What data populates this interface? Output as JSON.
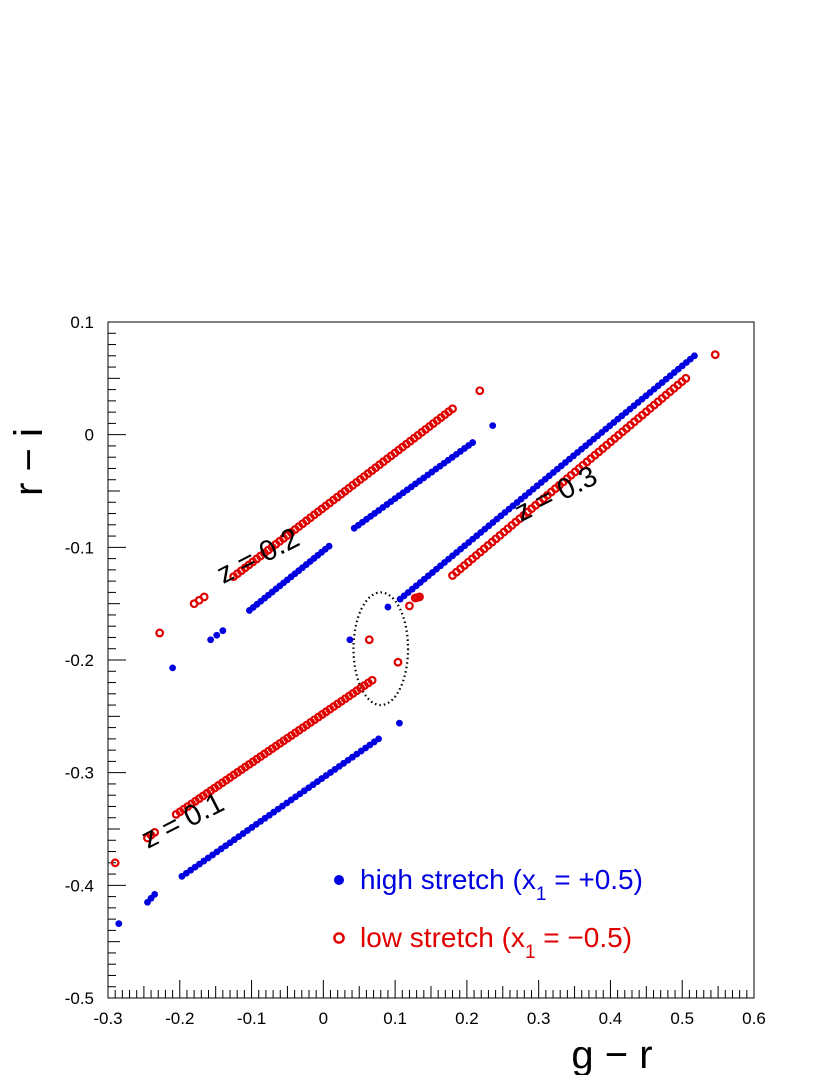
{
  "chart_data": {
    "type": "scatter",
    "title": "",
    "xlabel": "g − r",
    "ylabel": "r − i",
    "xlim": [
      -0.3,
      0.6
    ],
    "ylim": [
      -0.5,
      0.1
    ],
    "x_ticks": [
      -0.3,
      -0.2,
      -0.1,
      0,
      0.1,
      0.2,
      0.3,
      0.4,
      0.5,
      0.6
    ],
    "y_ticks": [
      0.1,
      0,
      -0.1,
      -0.2,
      -0.3,
      -0.4,
      -0.5
    ],
    "x_tick_labels": [
      "-0.3",
      "-0.2",
      "-0.1",
      "0",
      "0.1",
      "0.2",
      "0.3",
      "0.4",
      "0.5",
      "0.6"
    ],
    "y_tick_labels": [
      "0.1",
      "0",
      "-0.1",
      "-0.2",
      "-0.3",
      "-0.4",
      "-0.5"
    ],
    "grid": false,
    "legend_position": "bottom-right",
    "legend": [
      {
        "text": "high stretch (x",
        "sub": "1",
        "tail": " = +0.5)",
        "color": "#0000e0",
        "marker": "filled-circle"
      },
      {
        "text": "low stretch (x",
        "sub": "1",
        "tail": " = −0.5)",
        "color": "#e00000",
        "marker": "open-circle"
      }
    ],
    "annotations": [
      {
        "text": "z = 0.1",
        "x": -0.19,
        "y": -0.35
      },
      {
        "text": "z = 0.2",
        "x": -0.085,
        "y": -0.115
      },
      {
        "text": "z = 0.3",
        "x": 0.33,
        "y": -0.06
      }
    ],
    "highlight_ellipse": {
      "cx": 0.08,
      "cy": -0.19,
      "rx": 0.038,
      "ry": 0.05,
      "style": "dotted"
    },
    "series": [
      {
        "name": "high stretch",
        "color": "#0000e0",
        "marker": "filled-circle",
        "segments": [
          {
            "x_start": -0.285,
            "y_start": -0.434,
            "x_end": -0.285,
            "y_end": -0.434,
            "n": 1
          },
          {
            "x_start": -0.245,
            "y_start": -0.415,
            "x_end": -0.235,
            "y_end": -0.408,
            "n": 3
          },
          {
            "x_start": -0.197,
            "y_start": -0.392,
            "x_end": 0.077,
            "y_end": -0.27,
            "n": 46
          },
          {
            "x_start": 0.106,
            "y_start": -0.256,
            "x_end": 0.106,
            "y_end": -0.256,
            "n": 1
          },
          {
            "x_start": -0.21,
            "y_start": -0.207,
            "x_end": -0.21,
            "y_end": -0.207,
            "n": 1
          },
          {
            "x_start": -0.157,
            "y_start": -0.182,
            "x_end": -0.14,
            "y_end": -0.174,
            "n": 3
          },
          {
            "x_start": -0.103,
            "y_start": -0.156,
            "x_end": 0.008,
            "y_end": -0.099,
            "n": 22
          },
          {
            "x_start": 0.043,
            "y_start": -0.083,
            "x_end": 0.208,
            "y_end": -0.007,
            "n": 30
          },
          {
            "x_start": 0.236,
            "y_start": 0.008,
            "x_end": 0.236,
            "y_end": 0.008,
            "n": 1
          },
          {
            "x_start": 0.037,
            "y_start": -0.182,
            "x_end": 0.037,
            "y_end": -0.182,
            "n": 1
          },
          {
            "x_start": 0.09,
            "y_start": -0.153,
            "x_end": 0.09,
            "y_end": -0.153,
            "n": 1
          },
          {
            "x_start": 0.107,
            "y_start": -0.146,
            "x_end": 0.517,
            "y_end": 0.07,
            "n": 74
          }
        ]
      },
      {
        "name": "low stretch",
        "color": "#e00000",
        "marker": "open-circle",
        "segments": [
          {
            "x_start": -0.29,
            "y_start": -0.38,
            "x_end": -0.29,
            "y_end": -0.38,
            "n": 1
          },
          {
            "x_start": -0.245,
            "y_start": -0.358,
            "x_end": -0.235,
            "y_end": -0.353,
            "n": 3
          },
          {
            "x_start": -0.205,
            "y_start": -0.337,
            "x_end": 0.068,
            "y_end": -0.218,
            "n": 52
          },
          {
            "x_start": -0.228,
            "y_start": -0.176,
            "x_end": -0.228,
            "y_end": -0.176,
            "n": 1
          },
          {
            "x_start": -0.18,
            "y_start": -0.15,
            "x_end": -0.166,
            "y_end": -0.144,
            "n": 3
          },
          {
            "x_start": -0.125,
            "y_start": -0.126,
            "x_end": 0.18,
            "y_end": 0.023,
            "n": 58
          },
          {
            "x_start": 0.218,
            "y_start": 0.039,
            "x_end": 0.218,
            "y_end": 0.039,
            "n": 1
          },
          {
            "x_start": 0.064,
            "y_start": -0.182,
            "x_end": 0.064,
            "y_end": -0.182,
            "n": 1
          },
          {
            "x_start": 0.104,
            "y_start": -0.202,
            "x_end": 0.104,
            "y_end": -0.202,
            "n": 1
          },
          {
            "x_start": 0.12,
            "y_start": -0.152,
            "x_end": 0.12,
            "y_end": -0.152,
            "n": 1
          },
          {
            "x_start": 0.128,
            "y_start": -0.145,
            "x_end": 0.134,
            "y_end": -0.144,
            "n": 3
          },
          {
            "x_start": 0.18,
            "y_start": -0.125,
            "x_end": 0.505,
            "y_end": 0.05,
            "n": 60
          },
          {
            "x_start": 0.546,
            "y_start": 0.071,
            "x_end": 0.546,
            "y_end": 0.071,
            "n": 1
          }
        ]
      }
    ]
  }
}
